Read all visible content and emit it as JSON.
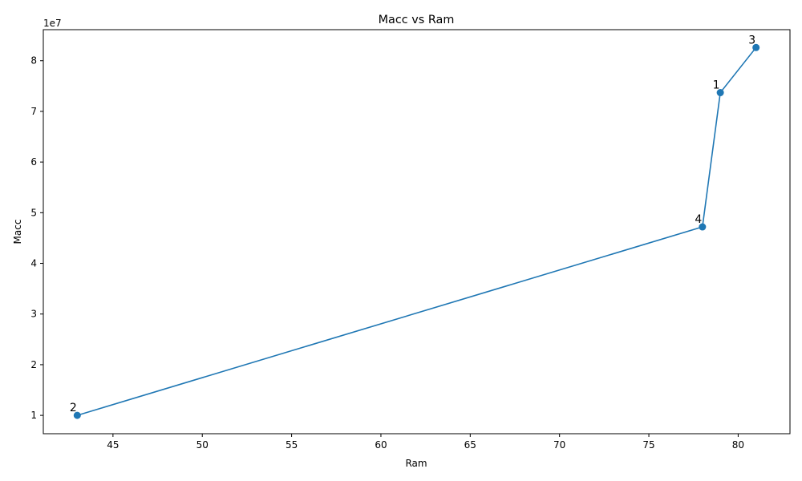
{
  "chart_data": {
    "type": "line",
    "title": "Macc vs Ram",
    "xlabel": "Ram",
    "ylabel": "Macc",
    "y_offset_label": "1e7",
    "xlim": [
      41.1,
      82.9
    ],
    "ylim": [
      6380000,
      86130000
    ],
    "x_ticks": [
      45,
      50,
      55,
      60,
      65,
      70,
      75,
      80
    ],
    "y_ticks": [
      10000000,
      20000000,
      30000000,
      40000000,
      50000000,
      60000000,
      70000000,
      80000000
    ],
    "y_tick_labels": [
      "1",
      "2",
      "3",
      "4",
      "5",
      "6",
      "7",
      "8"
    ],
    "x_tick_labels": [
      "45",
      "50",
      "55",
      "60",
      "65",
      "70",
      "75",
      "80"
    ],
    "grid": false,
    "line_color": "#1f77b4",
    "series": [
      {
        "points": [
          {
            "label": "2",
            "x": 43,
            "y": 10000000
          },
          {
            "label": "4",
            "x": 78,
            "y": 47200000
          },
          {
            "label": "1",
            "x": 79,
            "y": 73700000
          },
          {
            "label": "3",
            "x": 81,
            "y": 82600000
          }
        ]
      }
    ]
  }
}
